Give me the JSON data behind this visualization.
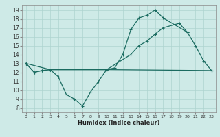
{
  "title": "",
  "xlabel": "Humidex (Indice chaleur)",
  "bg_color": "#ceeae7",
  "line_color": "#1a6b60",
  "grid_color": "#aed4d0",
  "xlim": [
    -0.5,
    23.5
  ],
  "ylim": [
    7.5,
    19.5
  ],
  "xticks": [
    0,
    1,
    2,
    3,
    4,
    5,
    6,
    7,
    8,
    9,
    10,
    11,
    12,
    13,
    14,
    15,
    16,
    17,
    18,
    19,
    20,
    21,
    22,
    23
  ],
  "yticks": [
    8,
    9,
    10,
    11,
    12,
    13,
    14,
    15,
    16,
    17,
    18,
    19
  ],
  "line1_x": [
    0,
    1,
    2,
    3,
    4,
    5,
    6,
    7,
    8,
    9,
    10,
    11,
    12,
    13,
    14,
    15,
    16,
    17,
    20
  ],
  "line1_y": [
    13,
    12,
    12.2,
    12.3,
    11.5,
    9.5,
    9.0,
    8.2,
    9.8,
    11.0,
    12.3,
    12.5,
    14.0,
    16.8,
    18.1,
    18.4,
    19.0,
    18.1,
    16.5
  ],
  "line2_x": [
    0,
    1,
    2,
    3,
    10,
    23
  ],
  "line2_y": [
    13,
    12,
    12.2,
    12.3,
    12.3,
    12.2
  ],
  "line3_x": [
    0,
    3,
    10,
    13,
    14,
    15,
    16,
    17,
    19,
    20,
    21,
    22,
    23
  ],
  "line3_y": [
    13,
    12.3,
    12.3,
    14.0,
    15.0,
    15.5,
    16.3,
    17.0,
    17.5,
    16.5,
    15.0,
    13.3,
    12.2
  ]
}
